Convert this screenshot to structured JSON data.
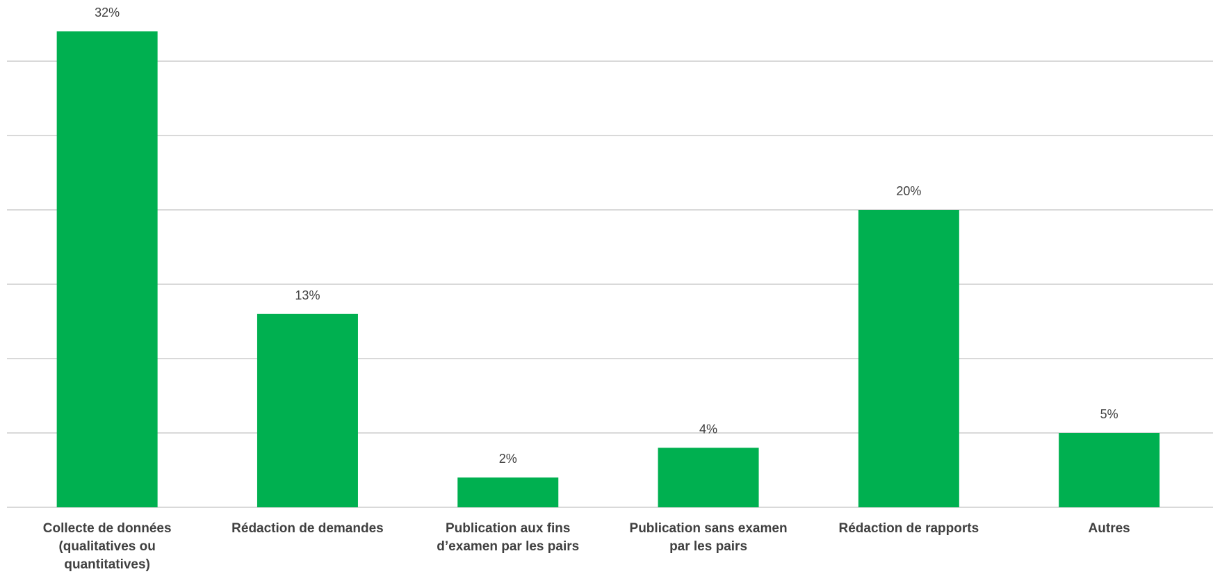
{
  "chart_data": {
    "type": "bar",
    "categories": [
      [
        "Collecte de données",
        "(qualitatives ou",
        "quantitatives)"
      ],
      [
        "Rédaction de demandes"
      ],
      [
        "Publication aux fins",
        "d’examen par les pairs"
      ],
      [
        "Publication sans examen",
        "par les pairs"
      ],
      [
        "Rédaction de rapports"
      ],
      [
        "Autres"
      ]
    ],
    "values": [
      32,
      13,
      2,
      4,
      20,
      5
    ],
    "data_labels": [
      "32%",
      "13%",
      "2%",
      "4%",
      "20%",
      "5%"
    ],
    "title": "",
    "xlabel": "",
    "ylabel": "",
    "ylim": [
      0,
      35
    ],
    "gridlines": [
      5,
      10,
      15,
      20,
      25,
      30
    ],
    "grid": true,
    "y_tick_labels_visible": false,
    "legend": "none",
    "colors": {
      "bar": "#00b050",
      "grid": "#d9d9d9",
      "axis": "#d9d9d9",
      "text": "#404040"
    }
  }
}
